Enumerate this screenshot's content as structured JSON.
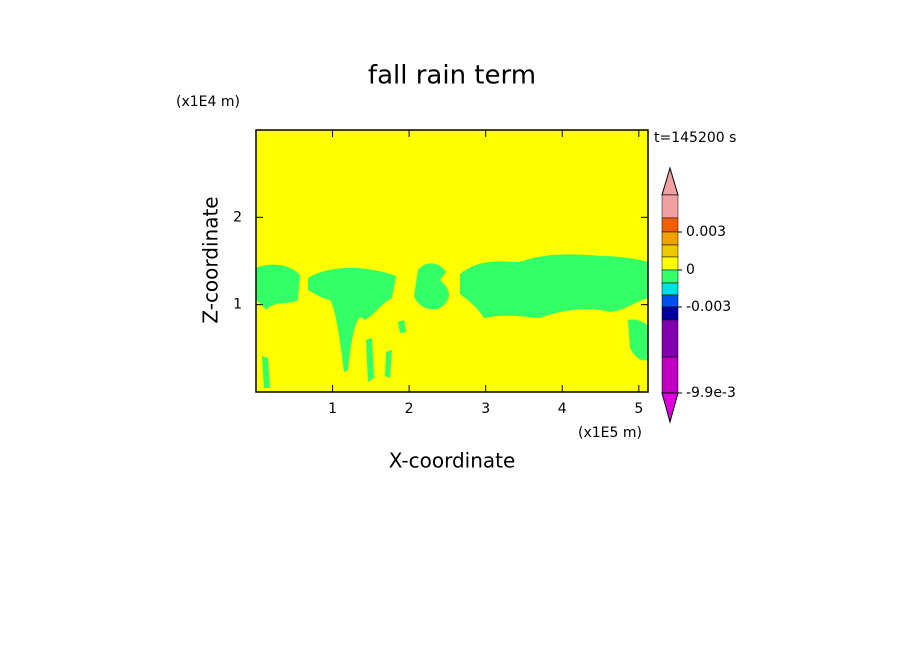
{
  "chart_data": {
    "type": "contour",
    "title": "fall rain term",
    "xlabel": "X-coordinate",
    "ylabel": "Z-coordinate",
    "xunit": "(x1E5 m)",
    "yunit": "(x1E4 m)",
    "annotation": "t=145200 s",
    "xlim": [
      0,
      5.12
    ],
    "ylim": [
      0,
      3
    ],
    "xticks": [
      1,
      2,
      3,
      4,
      5
    ],
    "yticks": [
      1,
      2
    ],
    "background_color": "#ffff00",
    "field_color": "#33ff66",
    "colorbar": {
      "colors": [
        "#f0a0a0",
        "#f0a0a0",
        "#f06000",
        "#f0a000",
        "#f0c800",
        "#ffff00",
        "#33ff66",
        "#00e0e0",
        "#0050f0",
        "#0000a0",
        "#8000b0",
        "#c000c0",
        "#e000e0"
      ],
      "ticks": [
        0.003,
        0,
        -0.003,
        {
          "value": -0.0099,
          "label": "-9.9e-3"
        }
      ]
    }
  }
}
